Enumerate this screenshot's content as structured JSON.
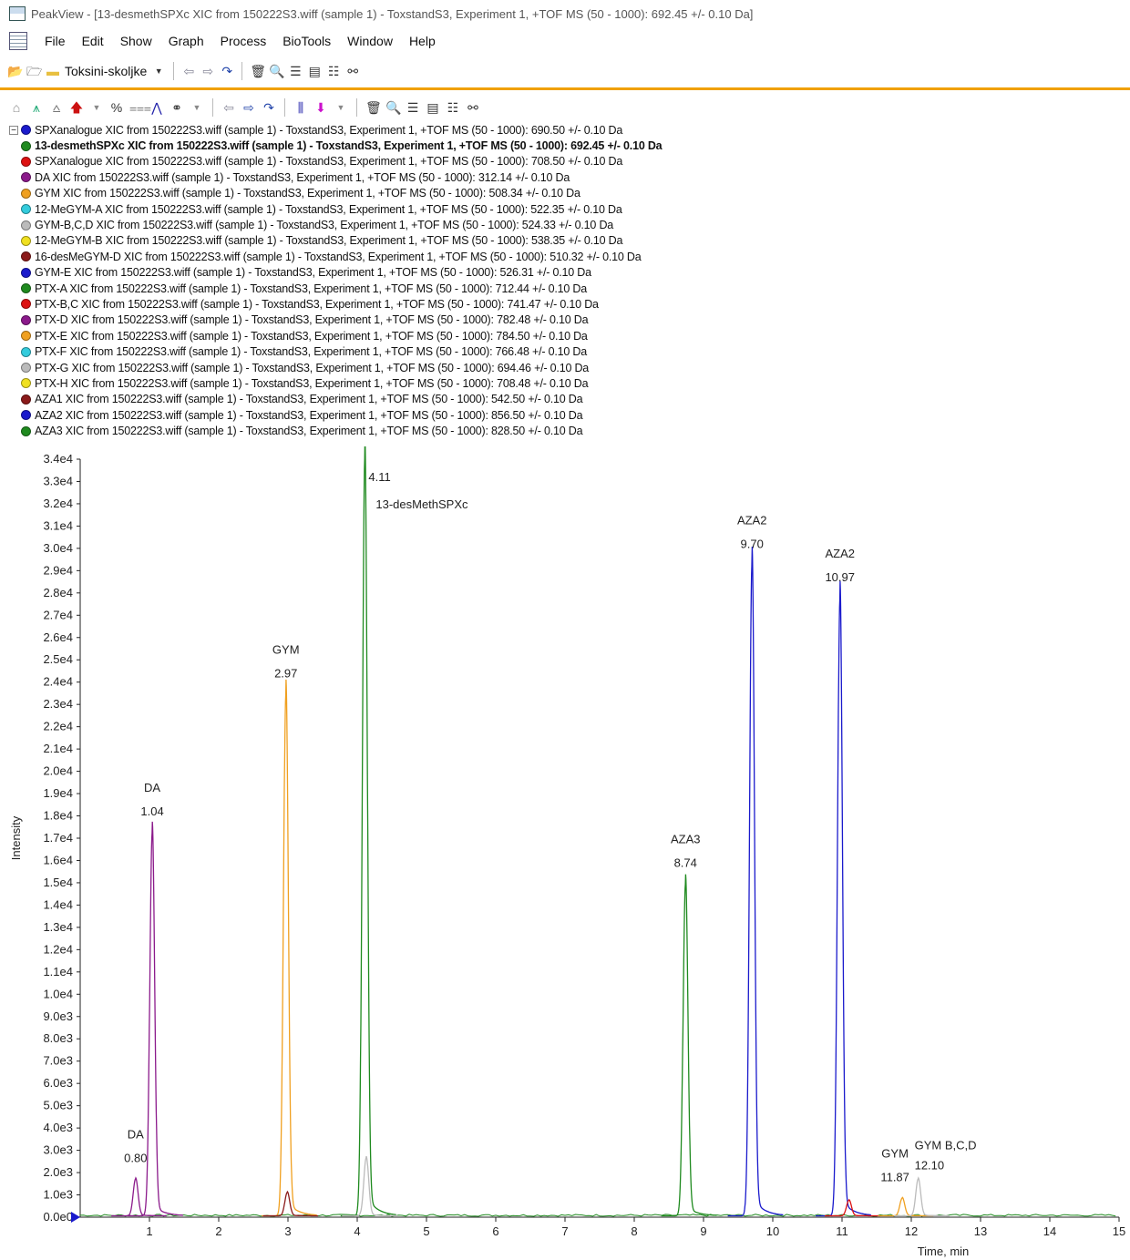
{
  "window": {
    "title": "PeakView - [13-desmethSPXc XIC from 150222S3.wiff (sample 1) - ToxstandS3, Experiment 1, +TOF MS (50 - 1000): 692.45 +/- 0.10 Da]"
  },
  "menu": [
    "File",
    "Edit",
    "Show",
    "Graph",
    "Process",
    "BioTools",
    "Window",
    "Help"
  ],
  "toolbar": {
    "workspace_label": "Toksini-skoljke",
    "percent_label": "%"
  },
  "legend": [
    {
      "text": "SPXanalogue XIC from 150222S3.wiff (sample 1) - ToxstandS3, Experiment 1, +TOF MS (50 - 1000): 690.50 +/- 0.10 Da",
      "color": "#1a1acc"
    },
    {
      "text": "13-desmethSPXc XIC from 150222S3.wiff (sample 1) - ToxstandS3, Experiment 1, +TOF MS (50 - 1000): 692.45 +/- 0.10 Da",
      "color": "#1f8a1f",
      "bold": true
    },
    {
      "text": "SPXanalogue XIC from 150222S3.wiff (sample 1) - ToxstandS3, Experiment 1, +TOF MS (50 - 1000): 708.50 +/- 0.10 Da",
      "color": "#dd1111"
    },
    {
      "text": "DA XIC from 150222S3.wiff (sample 1) - ToxstandS3, Experiment 1, +TOF MS (50 - 1000): 312.14 +/- 0.10 Da",
      "color": "#8b1a8b"
    },
    {
      "text": "GYM XIC from 150222S3.wiff (sample 1) - ToxstandS3, Experiment 1, +TOF MS (50 - 1000): 508.34 +/- 0.10 Da",
      "color": "#f0a020"
    },
    {
      "text": "12-MeGYM-A XIC from 150222S3.wiff (sample 1) - ToxstandS3, Experiment 1, +TOF MS (50 - 1000): 522.35 +/- 0.10 Da",
      "color": "#33ccdd"
    },
    {
      "text": "GYM-B,C,D XIC from 150222S3.wiff (sample 1) - ToxstandS3, Experiment 1, +TOF MS (50 - 1000): 524.33 +/- 0.10 Da",
      "color": "#bbbbbb"
    },
    {
      "text": "12-MeGYM-B XIC from 150222S3.wiff (sample 1) - ToxstandS3, Experiment 1, +TOF MS (50 - 1000): 538.35 +/- 0.10 Da",
      "color": "#f0e020"
    },
    {
      "text": "16-desMeGYM-D XIC from 150222S3.wiff (sample 1) - ToxstandS3, Experiment 1, +TOF MS (50 - 1000): 510.32 +/- 0.10 Da",
      "color": "#8b1a1a"
    },
    {
      "text": "GYM-E XIC from 150222S3.wiff (sample 1) - ToxstandS3, Experiment 1, +TOF MS (50 - 1000): 526.31 +/- 0.10 Da",
      "color": "#1a1acc"
    },
    {
      "text": "PTX-A XIC from 150222S3.wiff (sample 1) - ToxstandS3, Experiment 1, +TOF MS (50 - 1000): 712.44 +/- 0.10 Da",
      "color": "#1f8a1f"
    },
    {
      "text": "PTX-B,C XIC from 150222S3.wiff (sample 1) - ToxstandS3, Experiment 1, +TOF MS (50 - 1000): 741.47 +/- 0.10 Da",
      "color": "#dd1111"
    },
    {
      "text": "PTX-D XIC from 150222S3.wiff (sample 1) - ToxstandS3, Experiment 1, +TOF MS (50 - 1000): 782.48 +/- 0.10 Da",
      "color": "#8b1a8b"
    },
    {
      "text": "PTX-E XIC from 150222S3.wiff (sample 1) - ToxstandS3, Experiment 1, +TOF MS (50 - 1000): 784.50 +/- 0.10 Da",
      "color": "#f0a020"
    },
    {
      "text": "PTX-F XIC from 150222S3.wiff (sample 1) - ToxstandS3, Experiment 1, +TOF MS (50 - 1000): 766.48 +/- 0.10 Da",
      "color": "#33ccdd"
    },
    {
      "text": "PTX-G XIC from 150222S3.wiff (sample 1) - ToxstandS3, Experiment 1, +TOF MS (50 - 1000): 694.46 +/- 0.10 Da",
      "color": "#bbbbbb"
    },
    {
      "text": "PTX-H XIC from 150222S3.wiff (sample 1) - ToxstandS3, Experiment 1, +TOF MS (50 - 1000): 708.48 +/- 0.10 Da",
      "color": "#f0e020"
    },
    {
      "text": "AZA1 XIC from 150222S3.wiff (sample 1) - ToxstandS3, Experiment 1, +TOF MS (50 - 1000): 542.50 +/- 0.10 Da",
      "color": "#8b1a1a"
    },
    {
      "text": "AZA2 XIC from 150222S3.wiff (sample 1) - ToxstandS3, Experiment 1, +TOF MS (50 - 1000): 856.50 +/- 0.10 Da",
      "color": "#1a1acc"
    },
    {
      "text": "AZA3 XIC from 150222S3.wiff (sample 1) - ToxstandS3, Experiment 1, +TOF MS (50 - 1000): 828.50 +/- 0.10 Da",
      "color": "#1f8a1f"
    }
  ],
  "chart_data": {
    "type": "line",
    "xlabel": "Time, min",
    "ylabel": "Intensity",
    "xlim": [
      0,
      15
    ],
    "ylim": [
      0,
      34000
    ],
    "x_ticks": [
      1,
      2,
      3,
      4,
      5,
      6,
      7,
      8,
      9,
      10,
      11,
      12,
      13,
      14,
      15
    ],
    "y_ticks": [
      "0.0e0",
      "1.0e3",
      "2.0e3",
      "3.0e3",
      "4.0e3",
      "5.0e3",
      "6.0e3",
      "7.0e3",
      "8.0e3",
      "9.0e3",
      "1.0e4",
      "1.1e4",
      "1.2e4",
      "1.3e4",
      "1.4e4",
      "1.5e4",
      "1.6e4",
      "1.7e4",
      "1.8e4",
      "1.9e4",
      "2.0e4",
      "2.1e4",
      "2.2e4",
      "2.3e4",
      "2.4e4",
      "2.5e4",
      "2.6e4",
      "2.7e4",
      "2.8e4",
      "2.9e4",
      "3.0e4",
      "3.1e4",
      "3.2e4",
      "3.3e4",
      "3.4e4"
    ],
    "peaks": [
      {
        "rt": 0.8,
        "height": 1650,
        "color": "#8b1a8b"
      },
      {
        "rt": 1.04,
        "height": 17200,
        "color": "#8b1a8b"
      },
      {
        "rt": 2.97,
        "height": 23400,
        "color": "#f0a020"
      },
      {
        "rt": 2.99,
        "height": 1050,
        "color": "#8b1a1a"
      },
      {
        "rt": 4.11,
        "height": 34000,
        "color": "#1f8a1f"
      },
      {
        "rt": 4.13,
        "height": 2600,
        "color": "#bbbbbb"
      },
      {
        "rt": 8.74,
        "height": 14900,
        "color": "#1f8a1f"
      },
      {
        "rt": 9.7,
        "height": 29200,
        "color": "#1a1acc"
      },
      {
        "rt": 10.97,
        "height": 27700,
        "color": "#1a1acc"
      },
      {
        "rt": 11.1,
        "height": 700,
        "color": "#dd1111"
      },
      {
        "rt": 11.87,
        "height": 800,
        "color": "#f0a020"
      },
      {
        "rt": 12.1,
        "height": 1650,
        "color": "#bbbbbb"
      }
    ],
    "annotations": [
      {
        "name": "DA",
        "rt": "0.80"
      },
      {
        "name": "DA",
        "rt": "1.04"
      },
      {
        "name": "GYM",
        "rt": "2.97"
      },
      {
        "name": "13-desMethSPXc",
        "rt": "4.11"
      },
      {
        "name": "AZA3",
        "rt": "8.74"
      },
      {
        "name": "AZA2",
        "rt": "9.70"
      },
      {
        "name": "AZA2",
        "rt": "10.97"
      },
      {
        "name": "GYM",
        "rt": "11.87"
      },
      {
        "name": "GYM B,C,D",
        "rt": "12.10"
      }
    ]
  }
}
